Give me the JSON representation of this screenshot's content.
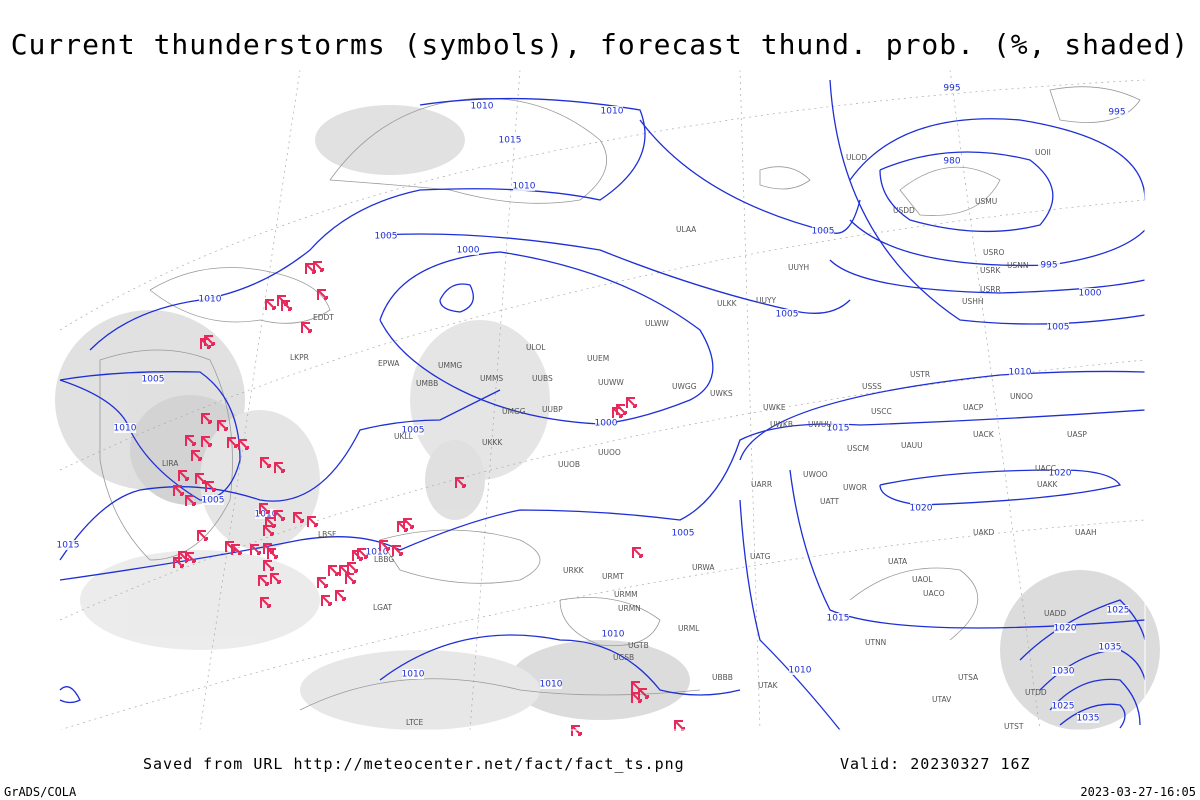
{
  "header": {
    "title": "Current thunderstorms (symbols), forecast thund. prob. (%, shaded)"
  },
  "footer": {
    "saved": "Saved from URL http://meteocenter.net/fact/fact_ts.png",
    "valid": "Valid: 20230327 16Z",
    "software": "GrADS/COLA",
    "timestamp": "2023-03-27-16:05"
  },
  "isobar_labels": [
    "995",
    "995",
    "980",
    "995",
    "1000",
    "1005",
    "1005",
    "1005",
    "1010",
    "1010",
    "1015",
    "1010",
    "1005",
    "1000",
    "1010",
    "1005",
    "1010",
    "1005",
    "1000",
    "1015",
    "1010",
    "1020",
    "1020",
    "1005",
    "1005",
    "1010",
    "1010",
    "1015",
    "1015",
    "1010",
    "1010",
    "1010",
    "1010",
    "1025",
    "1020",
    "1030",
    "1025",
    "1035",
    "1035"
  ],
  "stations": [
    "ULOD",
    "UOII",
    "USDD",
    "USMU",
    "USRO",
    "USRK",
    "USNN",
    "USHH",
    "USRR",
    "ULAA",
    "UUYH",
    "ULKK",
    "UUYY",
    "ULWW",
    "UUEM",
    "UUWW",
    "UWGG",
    "UWKS",
    "UWKE",
    "UWKB",
    "UWUU",
    "USSS",
    "USCC",
    "USTR",
    "UNOO",
    "UACP",
    "UACK",
    "UASP",
    "USCM",
    "UAUU",
    "UACC",
    "UAKK",
    "UWOO",
    "UWOR",
    "UATT",
    "UAKD",
    "UARR",
    "UATG",
    "UATA",
    "UAOL",
    "UACO",
    "UADD",
    "UTNN",
    "UUOB",
    "UUOO",
    "UKKK",
    "ULOL",
    "UMMG",
    "UMMS",
    "UMGG",
    "UUBS",
    "UUBP",
    "UKLL",
    "LKPR",
    "EPWA",
    "EDDT",
    "UMBB",
    "LIRA",
    "LBSF",
    "LBBG",
    "URKK",
    "URMT",
    "URMM",
    "URMN",
    "URWA",
    "URML",
    "UGTB",
    "UGSB",
    "UBBB",
    "UTAK",
    "UTSA",
    "UTAV",
    "UTST",
    "UTDD",
    "UAAH",
    "LTCE",
    "LGAT"
  ]
}
